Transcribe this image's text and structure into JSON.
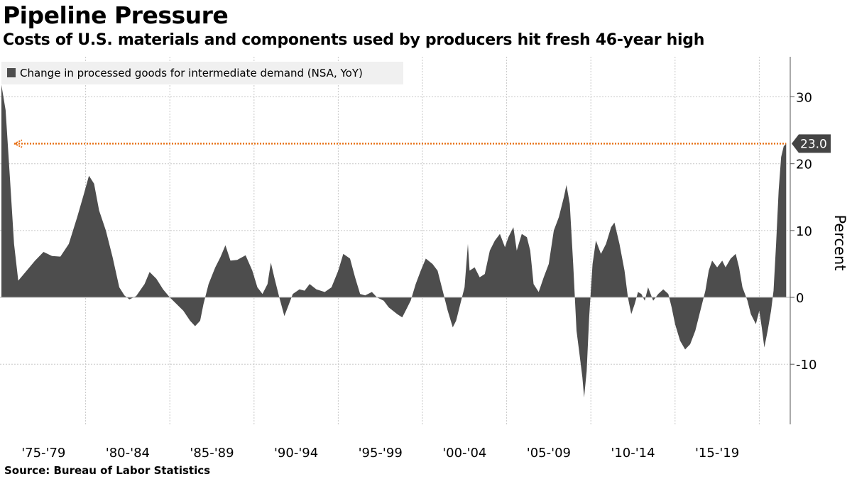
{
  "chart_data": {
    "type": "area",
    "title": "Pipeline Pressure",
    "subtitle": "Costs of U.S. materials and components used by producers hit fresh 46-year high",
    "source": "Source: Bureau of Labor Statistics",
    "ylabel": "Percent",
    "ylim": [
      -19,
      36
    ],
    "yticks": [
      30,
      20,
      10,
      0,
      -10
    ],
    "xlim": [
      1975.0,
      2021.67
    ],
    "xtick_labels": [
      "'75-'79",
      "'80-'84",
      "'85-'89",
      "'90-'94",
      "'95-'99",
      "'00-'04",
      "'05-'09",
      "'10-'14",
      "'15-'19"
    ],
    "grid": true,
    "legend_position": "top-left",
    "colors": {
      "series": "#4d4d4d",
      "reference": "#e8731a",
      "callout": "#444444"
    },
    "reference_line": {
      "value": 23.0,
      "label": "23.0"
    },
    "series": [
      {
        "name": "Change in processed goods for intermediate demand (NSA, YoY)",
        "points": [
          [
            1975.0,
            31.8
          ],
          [
            1975.25,
            28
          ],
          [
            1975.5,
            18
          ],
          [
            1975.75,
            8
          ],
          [
            1976.0,
            2.5
          ],
          [
            1976.5,
            4
          ],
          [
            1977.0,
            5.5
          ],
          [
            1977.5,
            6.8
          ],
          [
            1978.0,
            6.2
          ],
          [
            1978.5,
            6.1
          ],
          [
            1979.0,
            8
          ],
          [
            1979.5,
            12
          ],
          [
            1979.9,
            15.5
          ],
          [
            1980.2,
            18.2
          ],
          [
            1980.5,
            17
          ],
          [
            1980.8,
            13
          ],
          [
            1981.2,
            10
          ],
          [
            1981.6,
            6
          ],
          [
            1982.0,
            1.5
          ],
          [
            1982.3,
            0.3
          ],
          [
            1982.6,
            -0.3
          ],
          [
            1983.0,
            0.2
          ],
          [
            1983.5,
            2
          ],
          [
            1983.8,
            3.8
          ],
          [
            1984.2,
            2.8
          ],
          [
            1984.6,
            1.2
          ],
          [
            1985.0,
            0
          ],
          [
            1985.4,
            -1
          ],
          [
            1985.8,
            -2
          ],
          [
            1986.2,
            -3.5
          ],
          [
            1986.5,
            -4.3
          ],
          [
            1986.8,
            -3.5
          ],
          [
            1987.0,
            -1
          ],
          [
            1987.3,
            2
          ],
          [
            1987.7,
            4.5
          ],
          [
            1988.0,
            6
          ],
          [
            1988.3,
            7.8
          ],
          [
            1988.6,
            5.5
          ],
          [
            1989.0,
            5.6
          ],
          [
            1989.5,
            6.3
          ],
          [
            1989.9,
            4
          ],
          [
            1990.2,
            1.5
          ],
          [
            1990.5,
            0.5
          ],
          [
            1990.8,
            2
          ],
          [
            1991.0,
            5.2
          ],
          [
            1991.2,
            3
          ],
          [
            1991.5,
            0
          ],
          [
            1991.8,
            -2.8
          ],
          [
            1992.0,
            -1.5
          ],
          [
            1992.3,
            0.5
          ],
          [
            1992.7,
            1.2
          ],
          [
            1993.0,
            1
          ],
          [
            1993.3,
            2
          ],
          [
            1993.7,
            1.2
          ],
          [
            1994.2,
            0.8
          ],
          [
            1994.6,
            1.5
          ],
          [
            1995.0,
            4
          ],
          [
            1995.3,
            6.5
          ],
          [
            1995.7,
            5.8
          ],
          [
            1996.0,
            3
          ],
          [
            1996.3,
            0.5
          ],
          [
            1996.6,
            0.3
          ],
          [
            1997.0,
            0.8
          ],
          [
            1997.3,
            0
          ],
          [
            1997.7,
            -0.5
          ],
          [
            1998.0,
            -1.5
          ],
          [
            1998.5,
            -2.5
          ],
          [
            1998.8,
            -3
          ],
          [
            1999.0,
            -2
          ],
          [
            1999.3,
            -0.5
          ],
          [
            1999.6,
            2
          ],
          [
            1999.9,
            4
          ],
          [
            2000.2,
            5.8
          ],
          [
            2000.6,
            5
          ],
          [
            2000.9,
            4
          ],
          [
            2001.2,
            1
          ],
          [
            2001.5,
            -2
          ],
          [
            2001.8,
            -4.5
          ],
          [
            2002.0,
            -3.5
          ],
          [
            2002.3,
            -0.5
          ],
          [
            2002.5,
            1.5
          ],
          [
            2002.7,
            8
          ],
          [
            2002.8,
            4
          ],
          [
            2003.1,
            4.5
          ],
          [
            2003.4,
            3
          ],
          [
            2003.7,
            3.5
          ],
          [
            2004.0,
            7
          ],
          [
            2004.3,
            8.5
          ],
          [
            2004.6,
            9.5
          ],
          [
            2004.9,
            7.5
          ],
          [
            2005.1,
            9
          ],
          [
            2005.4,
            10.5
          ],
          [
            2005.6,
            7
          ],
          [
            2005.9,
            9.5
          ],
          [
            2006.2,
            9
          ],
          [
            2006.4,
            7
          ],
          [
            2006.6,
            2
          ],
          [
            2006.9,
            0.8
          ],
          [
            2007.2,
            3
          ],
          [
            2007.5,
            5
          ],
          [
            2007.8,
            10
          ],
          [
            2008.1,
            12
          ],
          [
            2008.4,
            15
          ],
          [
            2008.55,
            16.8
          ],
          [
            2008.75,
            14
          ],
          [
            2008.95,
            5
          ],
          [
            2009.15,
            -5
          ],
          [
            2009.35,
            -9
          ],
          [
            2009.5,
            -12
          ],
          [
            2009.6,
            -15
          ],
          [
            2009.75,
            -11
          ],
          [
            2009.9,
            -3
          ],
          [
            2010.1,
            5
          ],
          [
            2010.3,
            8.5
          ],
          [
            2010.6,
            6.5
          ],
          [
            2010.9,
            8
          ],
          [
            2011.2,
            10.5
          ],
          [
            2011.4,
            11.2
          ],
          [
            2011.7,
            8
          ],
          [
            2012.0,
            4
          ],
          [
            2012.2,
            0
          ],
          [
            2012.4,
            -2.5
          ],
          [
            2012.6,
            -1
          ],
          [
            2012.8,
            0.8
          ],
          [
            2013.0,
            0.5
          ],
          [
            2013.2,
            -0.5
          ],
          [
            2013.4,
            1.5
          ],
          [
            2013.7,
            -0.5
          ],
          [
            2014.0,
            0.5
          ],
          [
            2014.3,
            1.2
          ],
          [
            2014.6,
            0.5
          ],
          [
            2014.8,
            -1.5
          ],
          [
            2015.0,
            -4
          ],
          [
            2015.3,
            -6.5
          ],
          [
            2015.6,
            -7.8
          ],
          [
            2015.9,
            -7
          ],
          [
            2016.2,
            -5
          ],
          [
            2016.5,
            -2
          ],
          [
            2016.8,
            1
          ],
          [
            2017.0,
            4
          ],
          [
            2017.2,
            5.5
          ],
          [
            2017.5,
            4.5
          ],
          [
            2017.8,
            5.5
          ],
          [
            2018.0,
            4.5
          ],
          [
            2018.3,
            5.8
          ],
          [
            2018.6,
            6.5
          ],
          [
            2018.8,
            4.5
          ],
          [
            2019.0,
            1.5
          ],
          [
            2019.3,
            -0.5
          ],
          [
            2019.5,
            -2.5
          ],
          [
            2019.8,
            -4
          ],
          [
            2020.0,
            -2
          ],
          [
            2020.15,
            -4.5
          ],
          [
            2020.3,
            -7.5
          ],
          [
            2020.5,
            -5
          ],
          [
            2020.7,
            -2
          ],
          [
            2020.85,
            1
          ],
          [
            2021.0,
            8
          ],
          [
            2021.15,
            16
          ],
          [
            2021.3,
            21
          ],
          [
            2021.45,
            22.6
          ],
          [
            2021.6,
            23.0
          ]
        ]
      }
    ]
  }
}
